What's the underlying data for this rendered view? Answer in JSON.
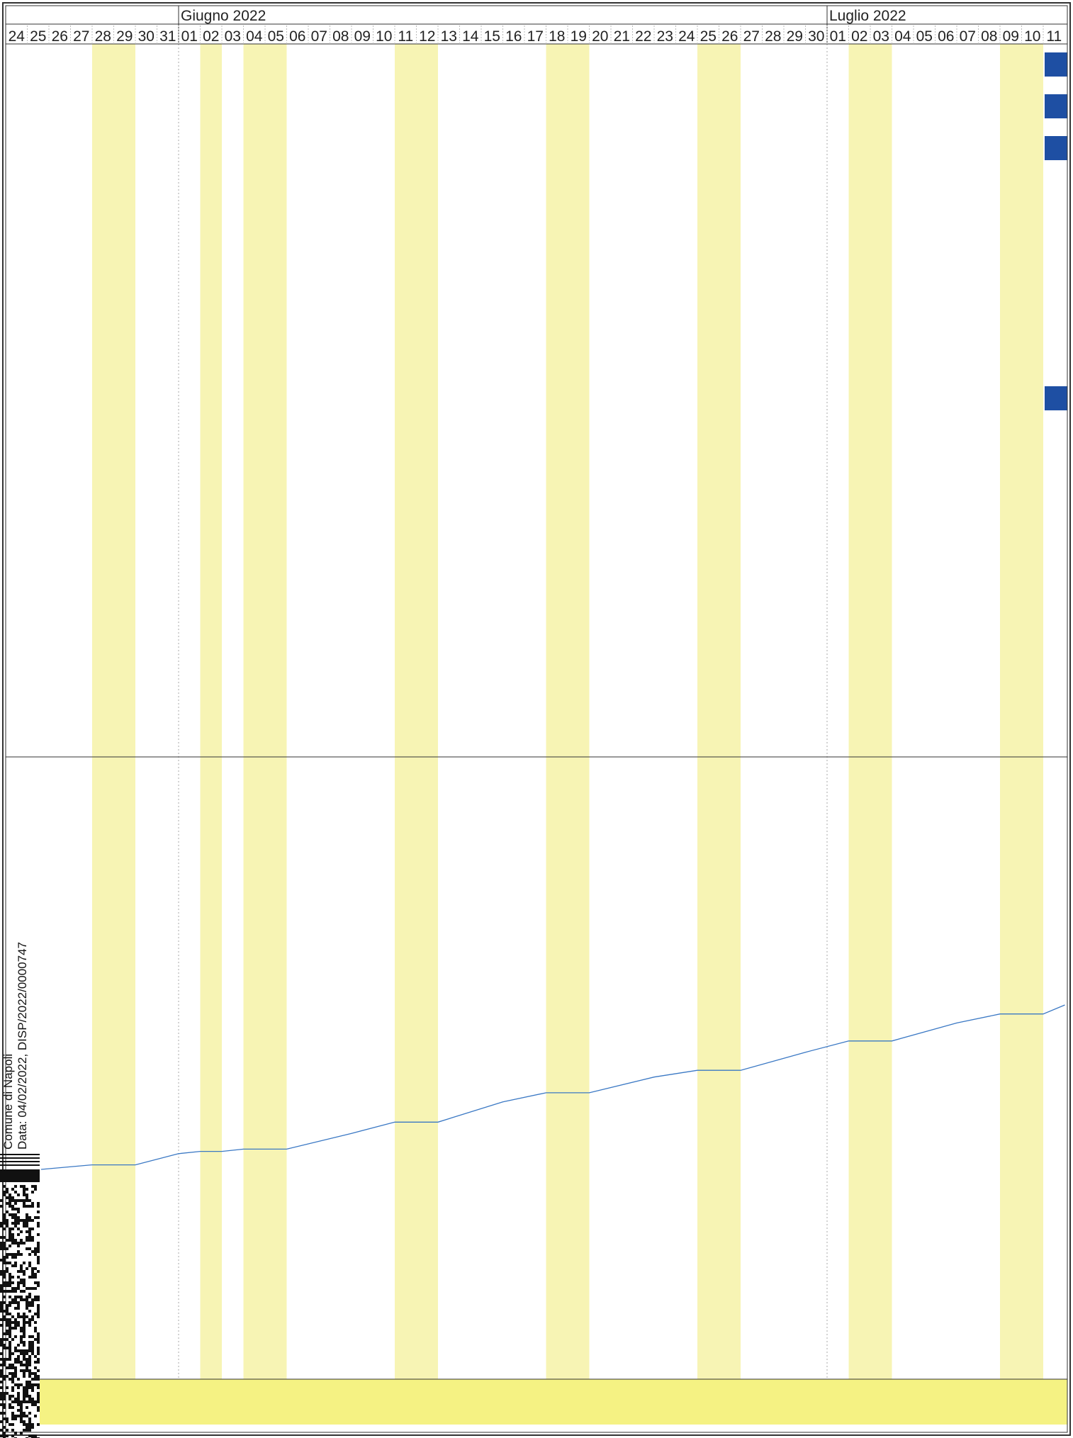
{
  "header": {
    "months": [
      {
        "label": "Giugno 2022",
        "start_day_index": 8
      },
      {
        "label": "Luglio 2022",
        "start_day_index": 38
      }
    ]
  },
  "chart_data": {
    "type": "gantt",
    "days": [
      "24",
      "25",
      "26",
      "27",
      "28",
      "29",
      "30",
      "31",
      "01",
      "02",
      "03",
      "04",
      "05",
      "06",
      "07",
      "08",
      "09",
      "10",
      "11",
      "12",
      "13",
      "14",
      "15",
      "16",
      "17",
      "18",
      "19",
      "20",
      "21",
      "22",
      "23",
      "24",
      "25",
      "26",
      "27",
      "28",
      "29",
      "30",
      "01",
      "02",
      "03",
      "04",
      "05",
      "06",
      "07",
      "08",
      "09",
      "10",
      "11"
    ],
    "dates": [
      "2022-05-24",
      "2022-05-25",
      "2022-05-26",
      "2022-05-27",
      "2022-05-28",
      "2022-05-29",
      "2022-05-30",
      "2022-05-31",
      "2022-06-01",
      "2022-06-02",
      "2022-06-03",
      "2022-06-04",
      "2022-06-05",
      "2022-06-06",
      "2022-06-07",
      "2022-06-08",
      "2022-06-09",
      "2022-06-10",
      "2022-06-11",
      "2022-06-12",
      "2022-06-13",
      "2022-06-14",
      "2022-06-15",
      "2022-06-16",
      "2022-06-17",
      "2022-06-18",
      "2022-06-19",
      "2022-06-20",
      "2022-06-21",
      "2022-06-22",
      "2022-06-23",
      "2022-06-24",
      "2022-06-25",
      "2022-06-26",
      "2022-06-27",
      "2022-06-28",
      "2022-06-29",
      "2022-06-30",
      "2022-07-01",
      "2022-07-02",
      "2022-07-03",
      "2022-07-04",
      "2022-07-05",
      "2022-07-06",
      "2022-07-07",
      "2022-07-08",
      "2022-07-09",
      "2022-07-10",
      "2022-07-11"
    ],
    "highlighted_days": [
      "2022-05-28",
      "2022-05-29",
      "2022-06-02",
      "2022-06-04",
      "2022-06-05",
      "2022-06-11",
      "2022-06-12",
      "2022-06-18",
      "2022-06-19",
      "2022-06-25",
      "2022-06-26",
      "2022-07-02",
      "2022-07-03",
      "2022-07-09",
      "2022-07-10"
    ],
    "highlight_color": "#f7f4b4",
    "task_bars": [
      {
        "start": "2022-07-11",
        "end": "2022-07-11",
        "color": "#1e4fa3"
      },
      {
        "start": "2022-07-11",
        "end": "2022-07-11",
        "color": "#1e4fa3"
      },
      {
        "start": "2022-07-11",
        "end": "2022-07-11",
        "color": "#1e4fa3"
      },
      {
        "start": "2022-07-11",
        "end": "2022-07-11",
        "color": "#1e4fa3"
      }
    ],
    "cumulative_line": {
      "color": "#3a78c4",
      "points": [
        {
          "x": "2022-05-24",
          "y": 0
        },
        {
          "x": "2022-05-28",
          "y": 2
        },
        {
          "x": "2022-05-30",
          "y": 2
        },
        {
          "x": "2022-06-01",
          "y": 7
        },
        {
          "x": "2022-06-02",
          "y": 8
        },
        {
          "x": "2022-06-03",
          "y": 8
        },
        {
          "x": "2022-06-04",
          "y": 9
        },
        {
          "x": "2022-06-06",
          "y": 9
        },
        {
          "x": "2022-06-09",
          "y": 16
        },
        {
          "x": "2022-06-11",
          "y": 21
        },
        {
          "x": "2022-06-13",
          "y": 21
        },
        {
          "x": "2022-06-16",
          "y": 30
        },
        {
          "x": "2022-06-18",
          "y": 34
        },
        {
          "x": "2022-06-20",
          "y": 34
        },
        {
          "x": "2022-06-23",
          "y": 41
        },
        {
          "x": "2022-06-25",
          "y": 44
        },
        {
          "x": "2022-06-27",
          "y": 44
        },
        {
          "x": "2022-06-30",
          "y": 52
        },
        {
          "x": "2022-07-02",
          "y": 57
        },
        {
          "x": "2022-07-04",
          "y": 57
        },
        {
          "x": "2022-07-07",
          "y": 65
        },
        {
          "x": "2022-07-09",
          "y": 69
        },
        {
          "x": "2022-07-11",
          "y": 69
        },
        {
          "x": "2022-07-12",
          "y": 73
        }
      ],
      "y_range": [
        0,
        80
      ]
    }
  },
  "stamp": {
    "line1": "Comune di Napoli",
    "line2": "Data: 04/02/2022, DISP/2022/0000747"
  },
  "colors": {
    "frame": "#333333",
    "footer_band": "#f5f283",
    "grid_dotted": "#aaaaaa"
  }
}
